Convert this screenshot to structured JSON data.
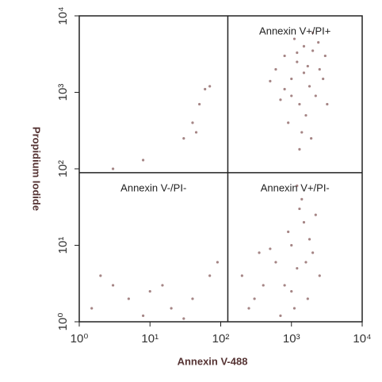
{
  "chart_data": {
    "type": "scatter",
    "xlabel": "Annexin V-488",
    "ylabel": "Propidium Iodide",
    "xscale": "log",
    "yscale": "log",
    "xlim": [
      1,
      10000
    ],
    "ylim": [
      1,
      10000
    ],
    "xticks": [
      {
        "value": 1,
        "label": "10⁰"
      },
      {
        "value": 10,
        "label": "10¹"
      },
      {
        "value": 100,
        "label": "10²"
      },
      {
        "value": 1000,
        "label": "10³"
      },
      {
        "value": 10000,
        "label": "10⁴"
      }
    ],
    "yticks": [
      {
        "value": 1,
        "label": "10⁰"
      },
      {
        "value": 10,
        "label": "10¹"
      },
      {
        "value": 100,
        "label": "10²"
      },
      {
        "value": 1000,
        "label": "10³"
      },
      {
        "value": 10000,
        "label": "10⁴"
      }
    ],
    "gates": {
      "x": 126,
      "y": 89
    },
    "annotations": [
      "Annexin V+/PI+",
      "Annexin V-/PI-",
      "Annexin V+/PI-"
    ],
    "color": "#a58585",
    "x": [
      800,
      1200,
      1500,
      2000,
      1000,
      1800,
      2500,
      700,
      1300,
      2200,
      900,
      1600,
      3000,
      1100,
      2000,
      1400,
      600,
      2800,
      1700,
      1000,
      1900,
      1300,
      800,
      2400,
      1500,
      500,
      3200,
      1200,
      60,
      70,
      50,
      40,
      30,
      45,
      3,
      8,
      1000,
      1200,
      1500,
      800,
      2000,
      1300,
      900,
      1700,
      1100,
      2500,
      600,
      400,
      300,
      700,
      1400,
      1800,
      2200,
      500,
      1000,
      1600,
      1200,
      350,
      250,
      200,
      2,
      3,
      5,
      10,
      20,
      8,
      15,
      40,
      70,
      90,
      1.5,
      30
    ],
    "y": [
      3000,
      2500,
      4000,
      3500,
      1500,
      1200,
      2000,
      800,
      700,
      900,
      400,
      500,
      3000,
      5000,
      6000,
      300,
      2000,
      1500,
      2200,
      900,
      250,
      180,
      1100,
      4500,
      1800,
      1400,
      700,
      3300,
      1100,
      1200,
      700,
      400,
      250,
      300,
      100,
      130,
      10,
      5,
      20,
      3,
      8,
      30,
      15,
      2,
      1.5,
      4,
      6,
      3,
      2,
      1.2,
      40,
      12,
      25,
      9,
      2.5,
      6,
      60,
      8,
      1.5,
      4,
      4,
      3,
      2,
      2.5,
      1.5,
      1.2,
      3,
      2,
      4,
      6,
      1.5,
      1.1
    ]
  }
}
